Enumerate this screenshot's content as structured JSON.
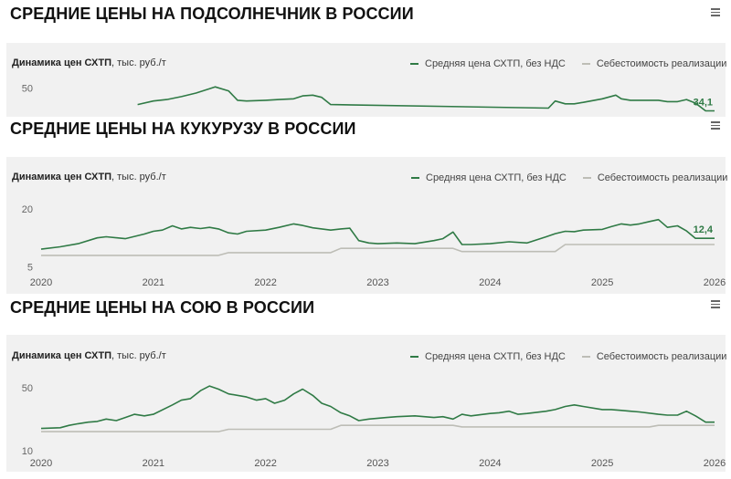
{
  "colors": {
    "price": "#2f7a45",
    "cost": "#bdbdb6",
    "bg": "#f1f1f1"
  },
  "panels": [
    {
      "title": "СРЕДНИЕ ЦЕНЫ НА ПОДСОЛНЕЧНИК В РОССИИ",
      "subtitle_bold": "Динамика цен СХТП",
      "subtitle_unit": ", тыс. руб./т",
      "legend_price": "Средняя цена СХТП, без НДС",
      "legend_cost": "Себестоимость реализации",
      "last_label": "34,1"
    },
    {
      "title": "СРЕДНИЕ ЦЕНЫ НА КУКУРУЗУ В РОССИИ",
      "subtitle_bold": "Динамика цен СХТП",
      "subtitle_unit": ", тыс. руб./т",
      "legend_price": "Средняя цена СХТП, без НДС",
      "legend_cost": "Себестоимость реализации",
      "last_label": "12,4"
    },
    {
      "title": "СРЕДНИЕ ЦЕНЫ НА СОЮ В РОССИИ",
      "subtitle_bold": "Динамика цен СХТП",
      "subtitle_unit": ", тыс. руб./т",
      "legend_price": "Средняя цена СХТП, без НДС",
      "legend_cost": "Себестоимость реализации",
      "last_label": ""
    }
  ],
  "chart_data": [
    {
      "type": "line",
      "title": "СРЕДНИЕ ЦЕНЫ НА ПОДСОЛНЕЧНИК В РОССИИ",
      "ylabel": "тыс. руб./т",
      "y_ticks": [
        "50"
      ],
      "ylim": [
        30,
        56
      ],
      "xlim": [
        2020,
        2026
      ],
      "series": [
        {
          "name": "Средняя цена СХТП, без НДС",
          "x": [
            2020.86,
            2021.0,
            2021.12,
            2021.25,
            2021.38,
            2021.5,
            2021.55,
            2021.67,
            2021.75,
            2021.83,
            2022.0,
            2022.12,
            2022.25,
            2022.33,
            2022.42,
            2022.5,
            2022.58,
            2024.52,
            2024.58,
            2024.67,
            2024.75,
            2024.83,
            2025.0,
            2025.12,
            2025.17,
            2025.25,
            2025.5,
            2025.58,
            2025.67,
            2025.75,
            2025.83,
            2025.92,
            2026.0
          ],
          "values": [
            38.5,
            41.0,
            42.0,
            44.0,
            46.5,
            49.5,
            50.8,
            48.0,
            41.5,
            41.0,
            41.5,
            42.0,
            42.5,
            44.5,
            45.0,
            43.5,
            38.5,
            36.0,
            41.0,
            39.0,
            39.0,
            40.0,
            42.5,
            45.0,
            42.5,
            41.5,
            41.5,
            40.5,
            40.5,
            42.0,
            39.5,
            34.1,
            34.1
          ]
        },
        {
          "name": "Себестоимость реализации",
          "x": [],
          "values": []
        }
      ]
    },
    {
      "type": "line",
      "title": "СРЕДНИЕ ЦЕНЫ НА КУКУРУЗУ В РОССИИ",
      "ylabel": "тыс. руб./т",
      "y_ticks": [
        "5",
        "20"
      ],
      "x_ticks": [
        "2020",
        "2021",
        "2022",
        "2023",
        "2024",
        "2025",
        "2026"
      ],
      "ylim": [
        0,
        23
      ],
      "xlim": [
        2020,
        2026
      ],
      "series": [
        {
          "name": "Средняя цена СХТП, без НДС",
          "x": [
            2020.0,
            2020.17,
            2020.33,
            2020.5,
            2020.58,
            2020.75,
            2020.92,
            2021.0,
            2021.08,
            2021.17,
            2021.25,
            2021.33,
            2021.42,
            2021.5,
            2021.58,
            2021.67,
            2021.75,
            2021.83,
            2022.0,
            2022.12,
            2022.25,
            2022.33,
            2022.42,
            2022.5,
            2022.58,
            2022.67,
            2022.75,
            2022.83,
            2022.92,
            2023.0,
            2023.17,
            2023.33,
            2023.5,
            2023.58,
            2023.67,
            2023.75,
            2023.83,
            2024.0,
            2024.17,
            2024.33,
            2024.5,
            2024.58,
            2024.67,
            2024.75,
            2024.83,
            2025.0,
            2025.08,
            2025.17,
            2025.25,
            2025.33,
            2025.42,
            2025.5,
            2025.58,
            2025.67,
            2025.75,
            2025.83,
            2025.92,
            2026.0
          ],
          "values": [
            9.6,
            10.2,
            11.0,
            12.5,
            12.8,
            12.3,
            13.5,
            14.2,
            14.5,
            15.6,
            14.8,
            15.2,
            14.9,
            15.2,
            14.8,
            13.8,
            13.5,
            14.2,
            14.5,
            15.2,
            16.1,
            15.7,
            15.1,
            14.8,
            14.5,
            14.8,
            15.0,
            11.8,
            11.2,
            11.0,
            11.2,
            11.0,
            11.8,
            12.3,
            14.0,
            10.8,
            10.8,
            11.0,
            11.5,
            11.2,
            12.8,
            13.6,
            14.2,
            14.1,
            14.5,
            14.7,
            15.4,
            16.1,
            15.8,
            16.1,
            16.7,
            17.2,
            15.2,
            15.6,
            14.3,
            12.4,
            12.4,
            12.4
          ]
        },
        {
          "name": "Себестоимость реализации",
          "x": [
            2020.0,
            2021.58,
            2021.67,
            2022.58,
            2022.67,
            2023.67,
            2023.75,
            2024.33,
            2024.42,
            2024.58,
            2024.67,
            2026.0
          ],
          "values": [
            8.0,
            8.0,
            8.7,
            8.7,
            9.8,
            9.8,
            9.0,
            9.0,
            9.0,
            9.0,
            10.8,
            10.8
          ]
        }
      ]
    },
    {
      "type": "line",
      "title": "СРЕДНИЕ ЦЕНЫ НА СОЮ В РОССИИ",
      "ylabel": "тыс. руб./т",
      "y_ticks": [
        "10",
        "50"
      ],
      "x_ticks": [
        "2020",
        "2021",
        "2022",
        "2023",
        "2024",
        "2025",
        "2026"
      ],
      "ylim": [
        0,
        58
      ],
      "xlim": [
        2020,
        2026
      ],
      "series": [
        {
          "name": "Средняя цена СХТП, без НДС",
          "x": [
            2020.0,
            2020.17,
            2020.25,
            2020.33,
            2020.42,
            2020.5,
            2020.58,
            2020.67,
            2020.75,
            2020.83,
            2020.92,
            2021.0,
            2021.17,
            2021.25,
            2021.33,
            2021.42,
            2021.5,
            2021.58,
            2021.67,
            2021.83,
            2021.92,
            2022.0,
            2022.08,
            2022.17,
            2022.25,
            2022.33,
            2022.42,
            2022.5,
            2022.58,
            2022.67,
            2022.75,
            2022.83,
            2022.92,
            2023.0,
            2023.08,
            2023.17,
            2023.33,
            2023.5,
            2023.58,
            2023.67,
            2023.75,
            2023.83,
            2024.0,
            2024.08,
            2024.17,
            2024.25,
            2024.33,
            2024.5,
            2024.58,
            2024.67,
            2024.75,
            2024.83,
            2025.0,
            2025.08,
            2025.17,
            2025.25,
            2025.33,
            2025.5,
            2025.58,
            2025.67,
            2025.75,
            2025.83,
            2025.92,
            2026.0
          ],
          "values": [
            24,
            24.5,
            26,
            27,
            28,
            28.5,
            30,
            29,
            31,
            33,
            32,
            33,
            39,
            42,
            43,
            48,
            51,
            49,
            46,
            44,
            42,
            43,
            40,
            42,
            46,
            49,
            45,
            40,
            38,
            34,
            32,
            29,
            30,
            30.5,
            31,
            31.5,
            32,
            31,
            31.5,
            30,
            33,
            32,
            33.5,
            34,
            35,
            33,
            33.5,
            35,
            36,
            38,
            39,
            38,
            36,
            36,
            35.5,
            35,
            34.5,
            33,
            32.5,
            32.5,
            35,
            32,
            28,
            28
          ]
        },
        {
          "name": "Себестоимость реализации",
          "x": [
            2020.0,
            2021.58,
            2021.67,
            2022.58,
            2022.67,
            2023.67,
            2023.75,
            2025.42,
            2025.5,
            2026.0
          ],
          "values": [
            22,
            22,
            23.5,
            23.5,
            26,
            26,
            25,
            25,
            26,
            26
          ]
        }
      ]
    }
  ]
}
